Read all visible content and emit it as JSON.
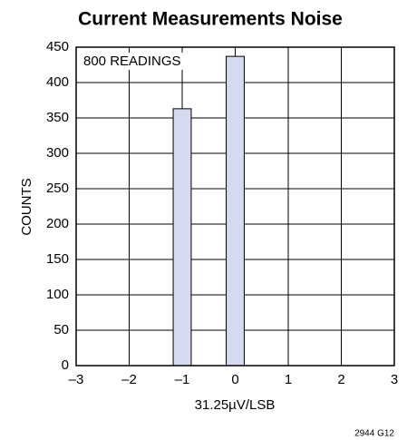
{
  "chart_data": {
    "type": "histogram",
    "title": "Current Measurements Noise",
    "xlabel": "31.25µV/LSB",
    "ylabel": "COUNTS",
    "annotation": "800 READINGS",
    "footnote": "2944 G12",
    "bins": [
      -1.17,
      -0.83,
      -0.17,
      0.17
    ],
    "values": [
      363,
      0,
      437
    ],
    "color": "#d5daf0",
    "xlim": [
      -3,
      3
    ],
    "xticks": [
      {
        "value": -3,
        "label": "–3"
      },
      {
        "value": -2,
        "label": "–2"
      },
      {
        "value": -1,
        "label": "–1"
      },
      0,
      1,
      2,
      3
    ],
    "ylim": [
      0,
      450
    ],
    "yticks": [
      0,
      50,
      100,
      150,
      200,
      250,
      300,
      350,
      400,
      450
    ],
    "grid": true
  }
}
